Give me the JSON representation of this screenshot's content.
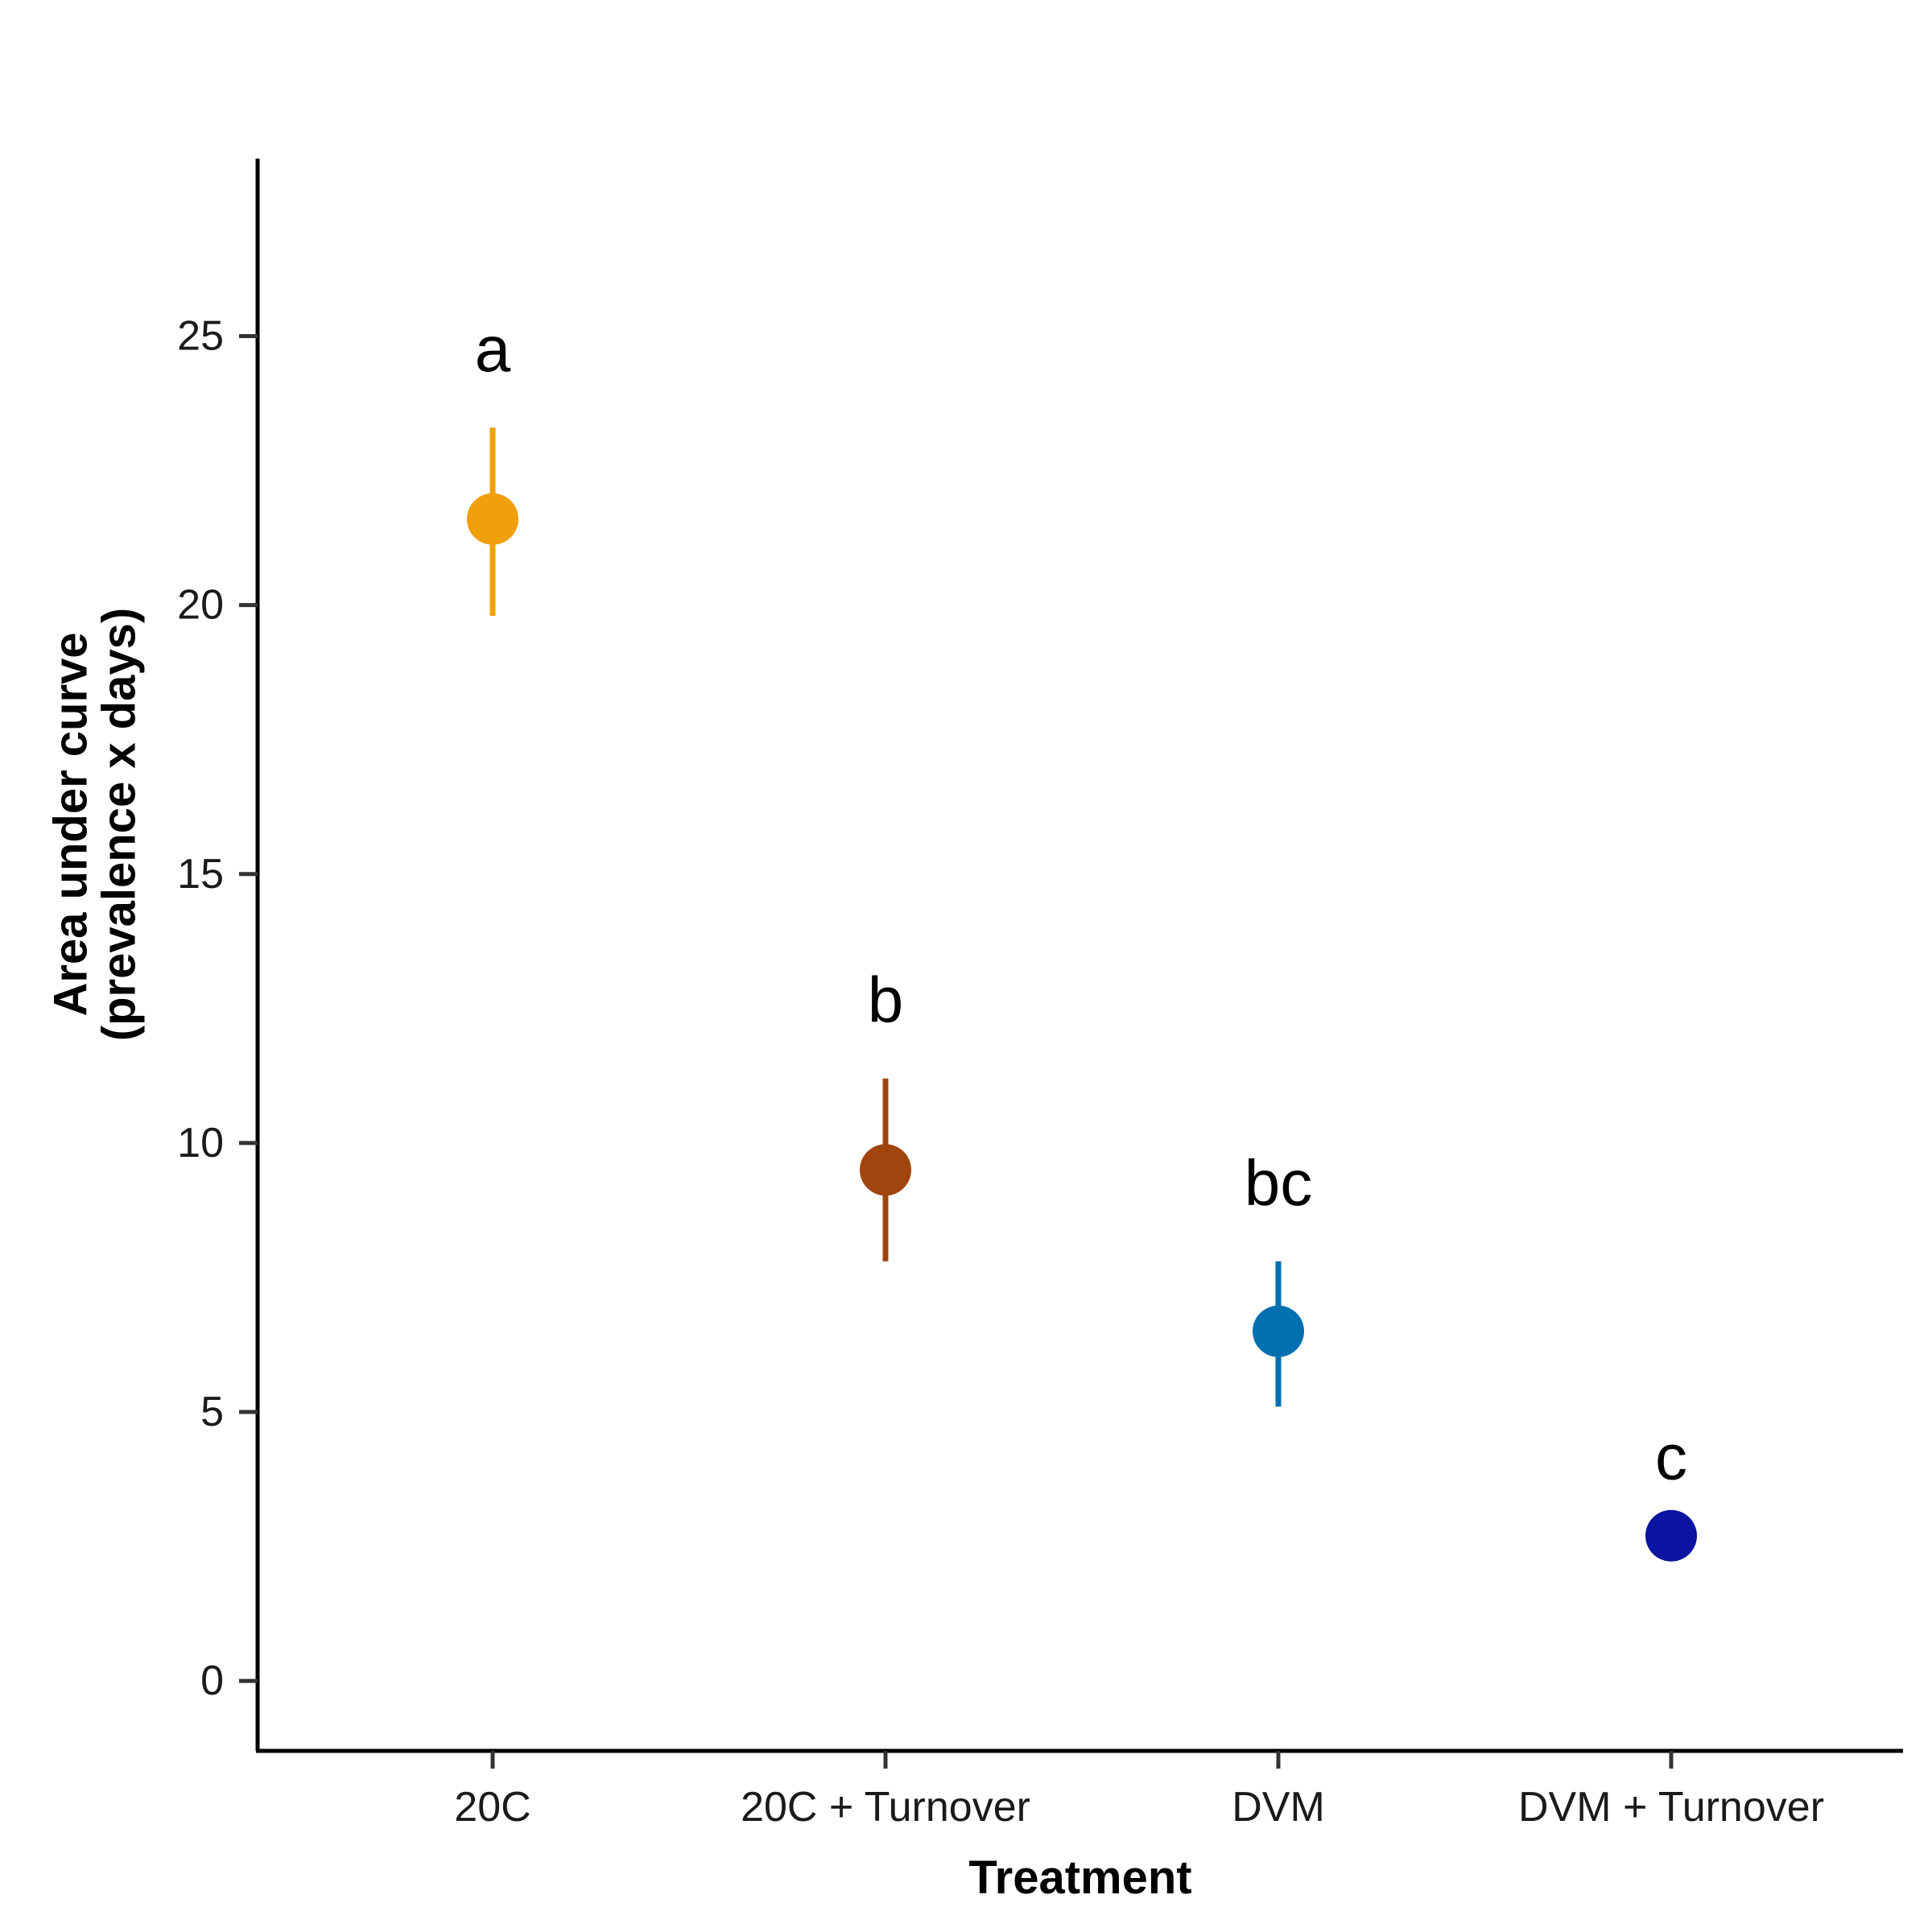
{
  "chart_data": {
    "type": "scatter",
    "xlabel": "Treatment",
    "ylabel": [
      "Area under curve",
      "(prevalence x days)"
    ],
    "categories": [
      "20C",
      "20C + Turnover",
      "DVM",
      "DVM + Turnover"
    ],
    "values": [
      21.6,
      9.5,
      6.5,
      2.7
    ],
    "error_low": [
      19.8,
      7.8,
      5.1,
      2.7
    ],
    "error_high": [
      23.3,
      11.2,
      7.8,
      2.7
    ],
    "significance_labels": [
      "a",
      "b",
      "bc",
      "c"
    ],
    "colors": [
      "#F0A00A",
      "#A0440E",
      "#0070B0",
      "#0A14A0"
    ],
    "ylim": [
      -1.3,
      28.3
    ],
    "yticks": [
      0,
      5,
      10,
      15,
      20,
      25
    ],
    "grid": false,
    "legend": "none"
  }
}
